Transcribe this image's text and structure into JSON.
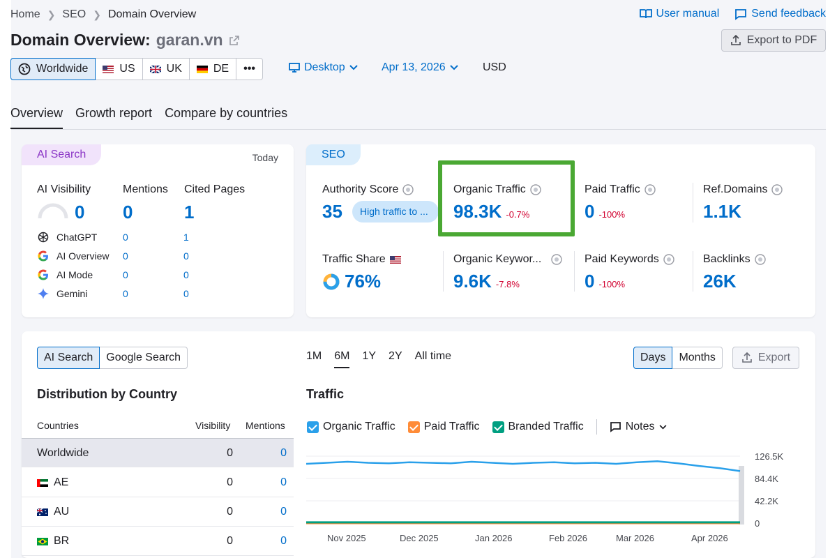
{
  "breadcrumb": {
    "home": "Home",
    "seo": "SEO",
    "current": "Domain Overview"
  },
  "top_links": {
    "user_manual": "User manual",
    "send_feedback": "Send feedback"
  },
  "title": {
    "prefix": "Domain Overview:",
    "domain": "garan.vn"
  },
  "export_pdf": "Export to PDF",
  "databases": [
    {
      "label": "Worldwide"
    },
    {
      "label": "US"
    },
    {
      "label": "UK"
    },
    {
      "label": "DE"
    },
    {
      "label": "•••"
    }
  ],
  "device": "Desktop",
  "date": "Apr 13, 2026",
  "currency": "USD",
  "tabs": [
    "Overview",
    "Growth report",
    "Compare by countries"
  ],
  "ai_card": {
    "label": "AI Search",
    "today": "Today",
    "cols": [
      "AI Visibility",
      "Mentions",
      "Cited Pages"
    ],
    "values": [
      "0",
      "0",
      "1"
    ],
    "rows": [
      {
        "name": "ChatGPT",
        "mentions": "0",
        "cited": "1"
      },
      {
        "name": "AI Overview",
        "mentions": "0",
        "cited": "0"
      },
      {
        "name": "AI Mode",
        "mentions": "0",
        "cited": "0"
      },
      {
        "name": "Gemini",
        "mentions": "0",
        "cited": "0"
      }
    ]
  },
  "seo_card": {
    "label": "SEO",
    "authority_score": {
      "label": "Authority Score",
      "value": "35",
      "tag": "High traffic to ..."
    },
    "organic_traffic": {
      "label": "Organic Traffic",
      "value": "98.3K",
      "change": "-0.7%"
    },
    "paid_traffic": {
      "label": "Paid Traffic",
      "value": "0",
      "change": "-100%"
    },
    "ref_domains": {
      "label": "Ref.Domains",
      "value": "1.1K"
    },
    "traffic_share": {
      "label": "Traffic Share",
      "value": "76%"
    },
    "organic_keywords": {
      "label": "Organic Keywor...",
      "value": "9.6K",
      "change": "-7.8%"
    },
    "paid_keywords": {
      "label": "Paid Keywords",
      "value": "0",
      "change": "-100%"
    },
    "backlinks": {
      "label": "Backlinks",
      "value": "26K"
    }
  },
  "bottom": {
    "source_tabs": [
      "AI Search",
      "Google Search"
    ],
    "periods": [
      "1M",
      "6M",
      "1Y",
      "2Y",
      "All time"
    ],
    "granularity": [
      "Days",
      "Months"
    ],
    "export": "Export",
    "distribution_title": "Distribution by Country",
    "table_headers": [
      "Countries",
      "Visibility",
      "Mentions"
    ],
    "table_rows": [
      {
        "country": "Worldwide",
        "visibility": "0",
        "mentions": "0"
      },
      {
        "country": "AE",
        "visibility": "0",
        "mentions": "0"
      },
      {
        "country": "AU",
        "visibility": "0",
        "mentions": "0"
      },
      {
        "country": "BR",
        "visibility": "0",
        "mentions": "0"
      }
    ],
    "traffic_title": "Traffic",
    "legend": [
      "Organic Traffic",
      "Paid Traffic",
      "Branded Traffic"
    ],
    "notes": "Notes"
  },
  "colors": {
    "accent": "#006dca",
    "organic": "#2aa0ea",
    "paid": "#ff8c38",
    "branded": "#009f81",
    "highlight": "#4aa833",
    "negative": "#d1002f"
  },
  "chart_data": {
    "type": "line",
    "title": "Traffic",
    "x_labels": [
      "Nov 2025",
      "Dec 2025",
      "Jan 2026",
      "Feb 2026",
      "Mar 2026",
      "Apr 2026"
    ],
    "y_ticks": [
      "126.5K",
      "84.4K",
      "42.2K",
      "0"
    ],
    "ylim": [
      0,
      126500
    ],
    "series": [
      {
        "name": "Organic Traffic",
        "values": [
          112000,
          114000,
          116000,
          114000,
          113000,
          115000,
          114000,
          113000,
          116000,
          114000,
          112000,
          114000,
          115000,
          113000,
          114000,
          112000,
          115000,
          117000,
          113000,
          108000,
          104000,
          98300
        ]
      },
      {
        "name": "Paid Traffic",
        "values": [
          0,
          0,
          0,
          0,
          0,
          0,
          0,
          0,
          0,
          0,
          0,
          0,
          0,
          0,
          0,
          0,
          0,
          0,
          0,
          0,
          0,
          0
        ]
      },
      {
        "name": "Branded Traffic",
        "values": [
          1500,
          1500,
          1500,
          1500,
          1500,
          1500,
          1500,
          1500,
          1500,
          1500,
          1500,
          1500,
          1500,
          1500,
          1500,
          1500,
          1500,
          1500,
          1500,
          1500,
          1500,
          1500
        ]
      }
    ]
  }
}
